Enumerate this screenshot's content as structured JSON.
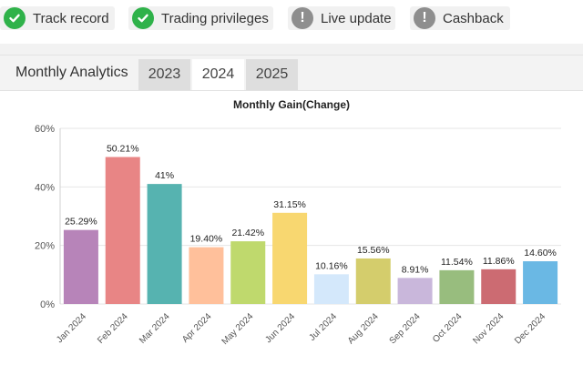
{
  "badges": [
    {
      "label": "Track record",
      "status": "ok",
      "icon": "check-circle-icon"
    },
    {
      "label": "Trading privileges",
      "status": "ok",
      "icon": "check-circle-icon"
    },
    {
      "label": "Live update",
      "status": "warn",
      "icon": "exclamation-circle-icon"
    },
    {
      "label": "Cashback",
      "status": "warn",
      "icon": "exclamation-circle-icon"
    }
  ],
  "panel": {
    "title": "Monthly Analytics",
    "tabs": [
      "2023",
      "2024",
      "2025"
    ],
    "active_tab": "2024"
  },
  "colors": {
    "ok": "#2fb24a",
    "warn": "#8e8e8e"
  },
  "chart_data": {
    "type": "bar",
    "title": "Monthly Gain(Change)",
    "xlabel": "",
    "ylabel": "",
    "ylim": [
      0,
      60
    ],
    "yticks": [
      0,
      20,
      40,
      60
    ],
    "ytick_labels": [
      "0%",
      "20%",
      "40%",
      "60%"
    ],
    "grid": true,
    "categories": [
      "Jan 2024",
      "Feb 2024",
      "Mar 2024",
      "Apr 2024",
      "May 2024",
      "Jun 2024",
      "Jul 2024",
      "Aug 2024",
      "Sep 2024",
      "Oct 2024",
      "Nov 2024",
      "Dec 2024"
    ],
    "values": [
      25.29,
      50.21,
      41,
      19.4,
      21.42,
      31.15,
      10.16,
      15.56,
      8.91,
      11.54,
      11.86,
      14.6
    ],
    "data_labels": [
      "25.29%",
      "50.21%",
      "41%",
      "19.40%",
      "21.42%",
      "31.15%",
      "10.16%",
      "15.56%",
      "8.91%",
      "11.54%",
      "11.86%",
      "14.60%"
    ],
    "bar_colors": [
      "#b784b9",
      "#e88585",
      "#56b3b0",
      "#ffc09b",
      "#bfd96d",
      "#f8d770",
      "#d4e8fb",
      "#d4cd6c",
      "#c9b7db",
      "#98bd7e",
      "#cc6b72",
      "#6ab8e4"
    ]
  }
}
